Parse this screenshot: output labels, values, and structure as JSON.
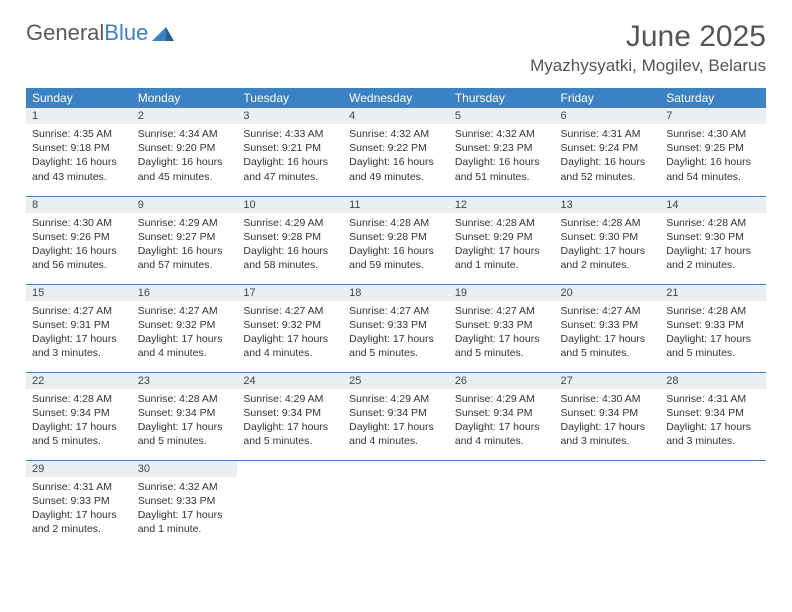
{
  "brand": {
    "general": "General",
    "blue": "Blue"
  },
  "title": "June 2025",
  "location": "Myazhysyatki, Mogilev, Belarus",
  "colors": {
    "header_bg": "#3b82c4",
    "header_text": "#ffffff",
    "daynum_bg": "#eceff1",
    "border": "#3b82c4",
    "text": "#333333"
  },
  "weekdays": [
    "Sunday",
    "Monday",
    "Tuesday",
    "Wednesday",
    "Thursday",
    "Friday",
    "Saturday"
  ],
  "weeks": [
    [
      {
        "n": "1",
        "sr": "Sunrise: 4:35 AM",
        "ss": "Sunset: 9:18 PM",
        "dl": "Daylight: 16 hours and 43 minutes."
      },
      {
        "n": "2",
        "sr": "Sunrise: 4:34 AM",
        "ss": "Sunset: 9:20 PM",
        "dl": "Daylight: 16 hours and 45 minutes."
      },
      {
        "n": "3",
        "sr": "Sunrise: 4:33 AM",
        "ss": "Sunset: 9:21 PM",
        "dl": "Daylight: 16 hours and 47 minutes."
      },
      {
        "n": "4",
        "sr": "Sunrise: 4:32 AM",
        "ss": "Sunset: 9:22 PM",
        "dl": "Daylight: 16 hours and 49 minutes."
      },
      {
        "n": "5",
        "sr": "Sunrise: 4:32 AM",
        "ss": "Sunset: 9:23 PM",
        "dl": "Daylight: 16 hours and 51 minutes."
      },
      {
        "n": "6",
        "sr": "Sunrise: 4:31 AM",
        "ss": "Sunset: 9:24 PM",
        "dl": "Daylight: 16 hours and 52 minutes."
      },
      {
        "n": "7",
        "sr": "Sunrise: 4:30 AM",
        "ss": "Sunset: 9:25 PM",
        "dl": "Daylight: 16 hours and 54 minutes."
      }
    ],
    [
      {
        "n": "8",
        "sr": "Sunrise: 4:30 AM",
        "ss": "Sunset: 9:26 PM",
        "dl": "Daylight: 16 hours and 56 minutes."
      },
      {
        "n": "9",
        "sr": "Sunrise: 4:29 AM",
        "ss": "Sunset: 9:27 PM",
        "dl": "Daylight: 16 hours and 57 minutes."
      },
      {
        "n": "10",
        "sr": "Sunrise: 4:29 AM",
        "ss": "Sunset: 9:28 PM",
        "dl": "Daylight: 16 hours and 58 minutes."
      },
      {
        "n": "11",
        "sr": "Sunrise: 4:28 AM",
        "ss": "Sunset: 9:28 PM",
        "dl": "Daylight: 16 hours and 59 minutes."
      },
      {
        "n": "12",
        "sr": "Sunrise: 4:28 AM",
        "ss": "Sunset: 9:29 PM",
        "dl": "Daylight: 17 hours and 1 minute."
      },
      {
        "n": "13",
        "sr": "Sunrise: 4:28 AM",
        "ss": "Sunset: 9:30 PM",
        "dl": "Daylight: 17 hours and 2 minutes."
      },
      {
        "n": "14",
        "sr": "Sunrise: 4:28 AM",
        "ss": "Sunset: 9:30 PM",
        "dl": "Daylight: 17 hours and 2 minutes."
      }
    ],
    [
      {
        "n": "15",
        "sr": "Sunrise: 4:27 AM",
        "ss": "Sunset: 9:31 PM",
        "dl": "Daylight: 17 hours and 3 minutes."
      },
      {
        "n": "16",
        "sr": "Sunrise: 4:27 AM",
        "ss": "Sunset: 9:32 PM",
        "dl": "Daylight: 17 hours and 4 minutes."
      },
      {
        "n": "17",
        "sr": "Sunrise: 4:27 AM",
        "ss": "Sunset: 9:32 PM",
        "dl": "Daylight: 17 hours and 4 minutes."
      },
      {
        "n": "18",
        "sr": "Sunrise: 4:27 AM",
        "ss": "Sunset: 9:33 PM",
        "dl": "Daylight: 17 hours and 5 minutes."
      },
      {
        "n": "19",
        "sr": "Sunrise: 4:27 AM",
        "ss": "Sunset: 9:33 PM",
        "dl": "Daylight: 17 hours and 5 minutes."
      },
      {
        "n": "20",
        "sr": "Sunrise: 4:27 AM",
        "ss": "Sunset: 9:33 PM",
        "dl": "Daylight: 17 hours and 5 minutes."
      },
      {
        "n": "21",
        "sr": "Sunrise: 4:28 AM",
        "ss": "Sunset: 9:33 PM",
        "dl": "Daylight: 17 hours and 5 minutes."
      }
    ],
    [
      {
        "n": "22",
        "sr": "Sunrise: 4:28 AM",
        "ss": "Sunset: 9:34 PM",
        "dl": "Daylight: 17 hours and 5 minutes."
      },
      {
        "n": "23",
        "sr": "Sunrise: 4:28 AM",
        "ss": "Sunset: 9:34 PM",
        "dl": "Daylight: 17 hours and 5 minutes."
      },
      {
        "n": "24",
        "sr": "Sunrise: 4:29 AM",
        "ss": "Sunset: 9:34 PM",
        "dl": "Daylight: 17 hours and 5 minutes."
      },
      {
        "n": "25",
        "sr": "Sunrise: 4:29 AM",
        "ss": "Sunset: 9:34 PM",
        "dl": "Daylight: 17 hours and 4 minutes."
      },
      {
        "n": "26",
        "sr": "Sunrise: 4:29 AM",
        "ss": "Sunset: 9:34 PM",
        "dl": "Daylight: 17 hours and 4 minutes."
      },
      {
        "n": "27",
        "sr": "Sunrise: 4:30 AM",
        "ss": "Sunset: 9:34 PM",
        "dl": "Daylight: 17 hours and 3 minutes."
      },
      {
        "n": "28",
        "sr": "Sunrise: 4:31 AM",
        "ss": "Sunset: 9:34 PM",
        "dl": "Daylight: 17 hours and 3 minutes."
      }
    ],
    [
      {
        "n": "29",
        "sr": "Sunrise: 4:31 AM",
        "ss": "Sunset: 9:33 PM",
        "dl": "Daylight: 17 hours and 2 minutes."
      },
      {
        "n": "30",
        "sr": "Sunrise: 4:32 AM",
        "ss": "Sunset: 9:33 PM",
        "dl": "Daylight: 17 hours and 1 minute."
      },
      null,
      null,
      null,
      null,
      null
    ]
  ]
}
